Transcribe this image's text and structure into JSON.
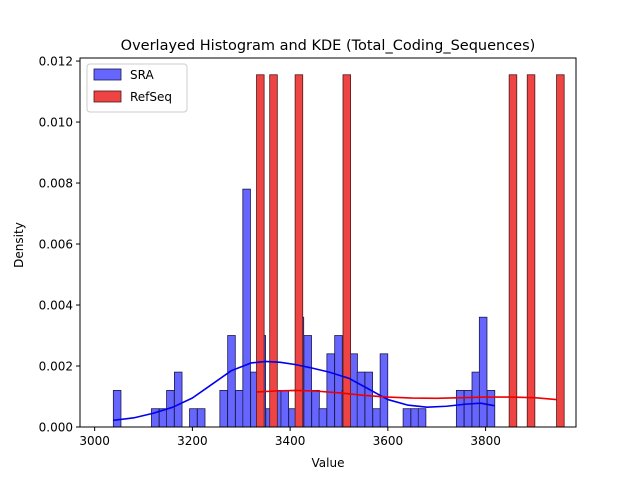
{
  "chart_data": {
    "type": "bar",
    "title": "Overlayed Histogram and KDE (Total_Coding_Sequences)",
    "xlabel": "Value",
    "ylabel": "Density",
    "xlim": [
      2970,
      3985
    ],
    "ylim": [
      0,
      0.0121
    ],
    "xticks": [
      3000,
      3200,
      3400,
      3600,
      3800
    ],
    "yticks": [
      0.0,
      0.002,
      0.004,
      0.006,
      0.008,
      0.01,
      0.012
    ],
    "ytick_labels": [
      "0.000",
      "0.002",
      "0.004",
      "0.006",
      "0.008",
      "0.010",
      "0.012"
    ],
    "grid": false,
    "legend_position": "top-left",
    "series": [
      {
        "name": "SRA",
        "color": "#6666ff",
        "edge": "#1a1a4d",
        "kde_color": "#0000ee",
        "bin_width": 15.6,
        "bars": [
          {
            "x": 3046,
            "h": 0.0012
          },
          {
            "x": 3124,
            "h": 0.0006
          },
          {
            "x": 3140,
            "h": 0.0006
          },
          {
            "x": 3155,
            "h": 0.0012
          },
          {
            "x": 3171,
            "h": 0.0018
          },
          {
            "x": 3202,
            "h": 0.0006
          },
          {
            "x": 3218,
            "h": 0.0006
          },
          {
            "x": 3264,
            "h": 0.0012
          },
          {
            "x": 3280,
            "h": 0.003
          },
          {
            "x": 3296,
            "h": 0.0012
          },
          {
            "x": 3311,
            "h": 0.0078
          },
          {
            "x": 3327,
            "h": 0.0018
          },
          {
            "x": 3342,
            "h": 0.003
          },
          {
            "x": 3358,
            "h": 0.0006
          },
          {
            "x": 3374,
            "h": 0.0012
          },
          {
            "x": 3389,
            "h": 0.0012
          },
          {
            "x": 3405,
            "h": 0.0006
          },
          {
            "x": 3420,
            "h": 0.0036
          },
          {
            "x": 3436,
            "h": 0.003
          },
          {
            "x": 3452,
            "h": 0.0012
          },
          {
            "x": 3467,
            "h": 0.0006
          },
          {
            "x": 3483,
            "h": 0.0024
          },
          {
            "x": 3499,
            "h": 0.003
          },
          {
            "x": 3514,
            "h": 0.0012
          },
          {
            "x": 3530,
            "h": 0.0024
          },
          {
            "x": 3545,
            "h": 0.0018
          },
          {
            "x": 3561,
            "h": 0.0018
          },
          {
            "x": 3577,
            "h": 0.0006
          },
          {
            "x": 3592,
            "h": 0.0024
          },
          {
            "x": 3639,
            "h": 0.0006
          },
          {
            "x": 3655,
            "h": 0.0006
          },
          {
            "x": 3670,
            "h": 0.0006
          },
          {
            "x": 3748,
            "h": 0.0012
          },
          {
            "x": 3764,
            "h": 0.0012
          },
          {
            "x": 3780,
            "h": 0.0018
          },
          {
            "x": 3795,
            "h": 0.0036
          },
          {
            "x": 3811,
            "h": 0.0012
          }
        ],
        "kde": [
          [
            3038,
            0.00022
          ],
          [
            3080,
            0.0003
          ],
          [
            3120,
            0.00045
          ],
          [
            3160,
            0.00065
          ],
          [
            3200,
            0.00095
          ],
          [
            3240,
            0.0014
          ],
          [
            3280,
            0.00185
          ],
          [
            3320,
            0.0021
          ],
          [
            3350,
            0.00215
          ],
          [
            3380,
            0.00212
          ],
          [
            3410,
            0.00205
          ],
          [
            3440,
            0.00195
          ],
          [
            3480,
            0.0018
          ],
          [
            3520,
            0.0016
          ],
          [
            3560,
            0.00125
          ],
          [
            3600,
            0.0009
          ],
          [
            3640,
            0.00072
          ],
          [
            3680,
            0.00065
          ],
          [
            3720,
            0.00068
          ],
          [
            3760,
            0.00075
          ],
          [
            3790,
            0.00078
          ],
          [
            3818,
            0.0007
          ]
        ]
      },
      {
        "name": "RefSeq",
        "color": "#ee4444",
        "edge": "#4d1a1a",
        "kde_color": "#ee0000",
        "bin_width": 15.6,
        "bars": [
          {
            "x": 3339,
            "h": 0.01155
          },
          {
            "x": 3366,
            "h": 0.01155
          },
          {
            "x": 3418,
            "h": 0.01155
          },
          {
            "x": 3516,
            "h": 0.01155
          },
          {
            "x": 3856,
            "h": 0.01155
          },
          {
            "x": 3893,
            "h": 0.01155
          },
          {
            "x": 3953,
            "h": 0.01155
          }
        ],
        "kde": [
          [
            3332,
            0.00115
          ],
          [
            3370,
            0.00118
          ],
          [
            3410,
            0.0012
          ],
          [
            3450,
            0.00118
          ],
          [
            3500,
            0.00112
          ],
          [
            3550,
            0.00104
          ],
          [
            3600,
            0.00098
          ],
          [
            3650,
            0.00095
          ],
          [
            3700,
            0.00094
          ],
          [
            3750,
            0.00096
          ],
          [
            3800,
            0.00098
          ],
          [
            3850,
            0.00098
          ],
          [
            3900,
            0.00096
          ],
          [
            3945,
            0.0009
          ]
        ]
      }
    ]
  }
}
